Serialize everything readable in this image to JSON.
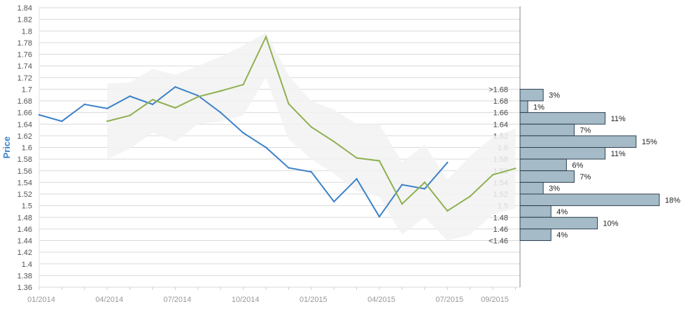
{
  "chart_data": {
    "type": "line",
    "ylabel": "Price",
    "ylim": [
      1.36,
      1.84
    ],
    "y_ticks": [
      "1.36",
      "1.38",
      "1.4",
      "1.42",
      "1.44",
      "1.46",
      "1.48",
      "1.5",
      "1.52",
      "1.54",
      "1.56",
      "1.58",
      "1.6",
      "1.62",
      "1.64",
      "1.66",
      "1.68",
      "1.7",
      "1.72",
      "1.74",
      "1.76",
      "1.78",
      "1.8",
      "1.82",
      "1.84"
    ],
    "x_ticks": [
      {
        "date": "2014-01",
        "label": "01/2014"
      },
      {
        "date": "2014-04",
        "label": "04/2014"
      },
      {
        "date": "2014-07",
        "label": "07/2014"
      },
      {
        "date": "2014-10",
        "label": "10/2014"
      },
      {
        "date": "2015-01",
        "label": "01/2015"
      },
      {
        "date": "2015-04",
        "label": "04/2015"
      },
      {
        "date": "2015-07",
        "label": "07/2015"
      },
      {
        "date": "2015-09",
        "label": "09/2015"
      }
    ],
    "grid": true,
    "series": [
      {
        "role": "actual",
        "color": "#3b82c8",
        "x": [
          "2014-01",
          "2014-02",
          "2014-03",
          "2014-04",
          "2014-05",
          "2014-06",
          "2014-07",
          "2014-08",
          "2014-09",
          "2014-10",
          "2014-11",
          "2014-12",
          "2015-01",
          "2015-02",
          "2015-03",
          "2015-04",
          "2015-05",
          "2015-06",
          "2015-07"
        ],
        "values": [
          1.656,
          1.645,
          1.674,
          1.667,
          1.688,
          1.674,
          1.704,
          1.689,
          1.66,
          1.625,
          1.6,
          1.565,
          1.558,
          1.507,
          1.546,
          1.481,
          1.536,
          1.529,
          1.574
        ]
      },
      {
        "role": "forecast",
        "color": "#8fb050",
        "x": [
          "2014-04",
          "2014-05",
          "2014-06",
          "2014-07",
          "2014-08",
          "2014-09",
          "2014-10",
          "2014-11",
          "2014-12",
          "2015-01",
          "2015-02",
          "2015-03",
          "2015-04",
          "2015-05",
          "2015-06",
          "2015-07",
          "2015-08",
          "2015-09",
          "2015-10"
        ],
        "values": [
          1.645,
          1.655,
          1.682,
          1.668,
          1.687,
          1.697,
          1.708,
          1.79,
          1.675,
          1.635,
          1.61,
          1.582,
          1.577,
          1.503,
          1.54,
          1.491,
          1.516,
          1.553,
          1.564
        ]
      }
    ],
    "band": {
      "color": "#f2f2f2",
      "x": [
        "2014-04",
        "2014-05",
        "2014-06",
        "2014-07",
        "2014-08",
        "2014-09",
        "2014-10",
        "2014-11",
        "2014-12",
        "2015-01",
        "2015-02",
        "2015-03",
        "2015-04",
        "2015-05",
        "2015-06",
        "2015-07",
        "2015-08",
        "2015-09",
        "2015-10"
      ],
      "upper": [
        1.71,
        1.712,
        1.735,
        1.725,
        1.74,
        1.756,
        1.775,
        1.797,
        1.724,
        1.68,
        1.665,
        1.64,
        1.64,
        1.575,
        1.605,
        1.545,
        1.585,
        1.618,
        1.632
      ],
      "lower": [
        1.58,
        1.598,
        1.625,
        1.61,
        1.64,
        1.645,
        1.655,
        1.72,
        1.614,
        1.58,
        1.555,
        1.525,
        1.515,
        1.45,
        1.48,
        1.44,
        1.45,
        1.485,
        1.495
      ]
    },
    "histogram": {
      "color": "#a5bcc8",
      "bins": [
        {
          "label": ">1.68",
          "center": 1.69,
          "value": 3,
          "pct_label": "3%"
        },
        {
          "label": "1.68",
          "center": 1.67,
          "value": 1,
          "pct_label": "1%"
        },
        {
          "label": "1.66",
          "center": 1.65,
          "value": 11,
          "pct_label": "11%"
        },
        {
          "label": "1.64",
          "center": 1.63,
          "value": 7,
          "pct_label": "7%"
        },
        {
          "label": "1.62",
          "center": 1.61,
          "value": 15,
          "pct_label": "15%"
        },
        {
          "label": "1.6",
          "center": 1.59,
          "value": 11,
          "pct_label": "11%"
        },
        {
          "label": "1.58",
          "center": 1.57,
          "value": 6,
          "pct_label": "6%"
        },
        {
          "label": "1.56",
          "center": 1.55,
          "value": 7,
          "pct_label": "7%"
        },
        {
          "label": "1.54",
          "center": 1.53,
          "value": 3,
          "pct_label": "3%"
        },
        {
          "label": "1.52",
          "center": 1.51,
          "value": 18,
          "pct_label": "18%"
        },
        {
          "label": "1.5",
          "center": 1.49,
          "value": 4,
          "pct_label": "4%"
        },
        {
          "label": "1.48",
          "center": 1.47,
          "value": 10,
          "pct_label": "10%"
        },
        {
          "label": "1.46",
          "center": 1.45,
          "value": 4,
          "pct_label": "4%"
        },
        {
          "label": "<1.46",
          "center": null,
          "value": null,
          "pct_label": null
        }
      ]
    }
  }
}
